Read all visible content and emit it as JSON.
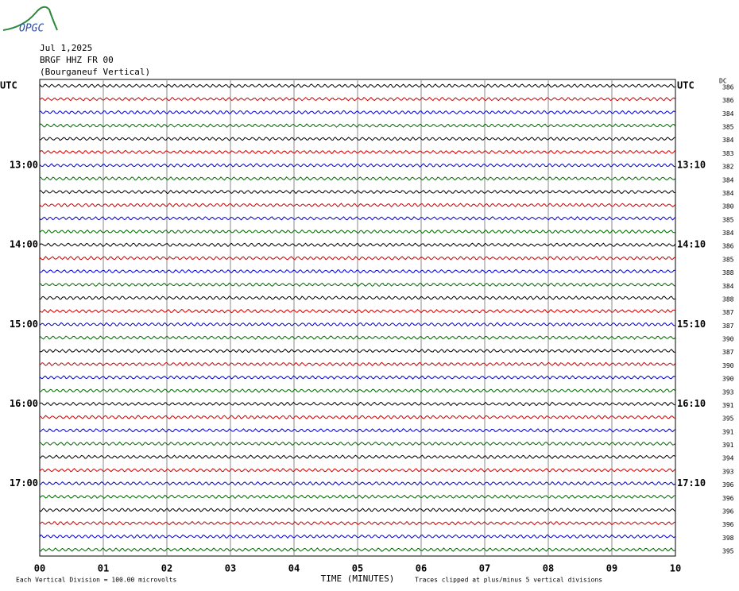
{
  "logo": "OPGC",
  "header": [
    "Jul 1,2025",
    "BRGF HHZ FR 00",
    "(Bourganeuf Vertical)"
  ],
  "left_labels": [
    "UTC",
    "13:00",
    "14:00",
    "15:00",
    "16:00",
    "17:00"
  ],
  "right_labels": [
    "UTC",
    "13:10",
    "14:10",
    "15:10",
    "16:10",
    "17:10"
  ],
  "dc_title": "DC",
  "dc_values": [
    "386",
    "386",
    "384",
    "385",
    "384",
    "383",
    "382",
    "384",
    "384",
    "380",
    "385",
    "384",
    "386",
    "385",
    "388",
    "384",
    "388",
    "387",
    "387",
    "390",
    "387",
    "390",
    "390",
    "393",
    "391",
    "395",
    "391",
    "391",
    "394",
    "393",
    "396",
    "396",
    "396",
    "396",
    "398",
    "395"
  ],
  "x_ticks": [
    "00",
    "01",
    "02",
    "03",
    "04",
    "05",
    "06",
    "07",
    "08",
    "09",
    "10"
  ],
  "x_axis_title": "TIME (MINUTES)",
  "footer_left": "Each Vertical Division =  100.00 microvolts",
  "footer_right": "Traces clipped at plus/minus 5 vertical divisions"
}
